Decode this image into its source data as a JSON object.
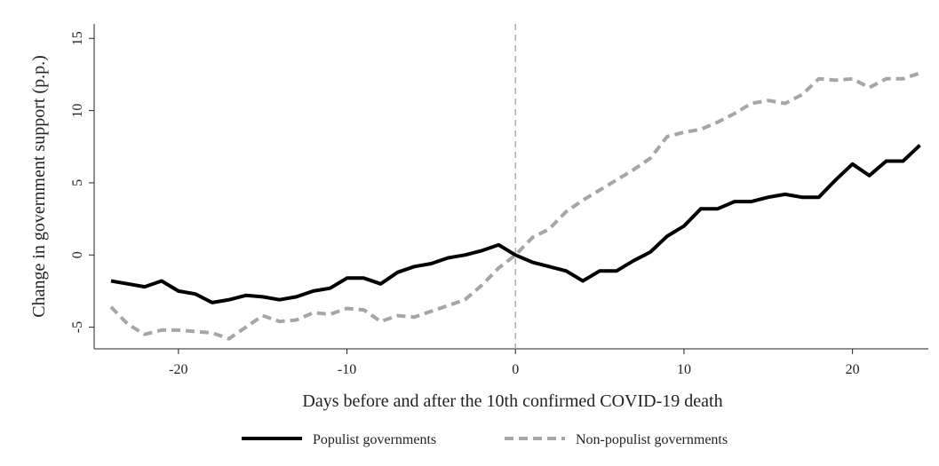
{
  "chart_data": {
    "type": "line",
    "xlabel": "Days before and after the 10th confirmed COVID-19 death",
    "ylabel": "Change in government support (p.p.)",
    "xlim": [
      -25,
      24.5
    ],
    "ylim": [
      -6.5,
      16
    ],
    "xticks": [
      -20,
      -10,
      0,
      10,
      20
    ],
    "yticks": [
      -5,
      0,
      5,
      10,
      15
    ],
    "xtick_labels": [
      "-20",
      "-10",
      "0",
      "10",
      "20"
    ],
    "ytick_labels": [
      "-5",
      "0",
      "5",
      "10",
      "15"
    ],
    "reference_line_x": 0,
    "grid": false,
    "legend_position": "bottom",
    "x": [
      -24,
      -23,
      -22,
      -21,
      -20,
      -19,
      -18,
      -17,
      -16,
      -15,
      -14,
      -13,
      -12,
      -11,
      -10,
      -9,
      -8,
      -7,
      -6,
      -5,
      -4,
      -3,
      -2,
      -1,
      0,
      1,
      2,
      3,
      4,
      5,
      6,
      7,
      8,
      9,
      10,
      11,
      12,
      13,
      14,
      15,
      16,
      17,
      18,
      19,
      20,
      21,
      22,
      23,
      24
    ],
    "series": [
      {
        "name": "Populist governments",
        "color": "#000000",
        "style": "solid",
        "values": [
          -1.8,
          -2.0,
          -2.2,
          -1.8,
          -2.5,
          -2.7,
          -3.3,
          -3.1,
          -2.8,
          -2.9,
          -3.1,
          -2.9,
          -2.5,
          -2.3,
          -1.6,
          -1.6,
          -2.0,
          -1.2,
          -0.8,
          -0.6,
          -0.2,
          0.0,
          0.3,
          0.7,
          0.0,
          -0.5,
          -0.8,
          -1.1,
          -1.8,
          -1.1,
          -1.1,
          -0.4,
          0.2,
          1.3,
          2.0,
          3.2,
          3.2,
          3.7,
          3.7,
          4.0,
          4.2,
          4.0,
          4.0,
          5.2,
          6.3,
          5.5,
          6.5,
          6.5,
          7.6
        ]
      },
      {
        "name": "Non-populist governments",
        "color": "#a6a6a6",
        "style": "dashed",
        "values": [
          -3.6,
          -4.8,
          -5.5,
          -5.2,
          -5.2,
          -5.3,
          -5.4,
          -5.8,
          -5.0,
          -4.2,
          -4.6,
          -4.5,
          -4.0,
          -4.1,
          -3.7,
          -3.8,
          -4.6,
          -4.2,
          -4.3,
          -3.9,
          -3.5,
          -3.1,
          -2.1,
          -0.9,
          0.0,
          1.2,
          1.8,
          3.0,
          3.8,
          4.5,
          5.2,
          5.9,
          6.7,
          8.2,
          8.5,
          8.7,
          9.2,
          9.8,
          10.5,
          10.7,
          10.5,
          11.1,
          12.2,
          12.1,
          12.2,
          11.6,
          12.2,
          12.2,
          12.6
        ]
      }
    ]
  }
}
